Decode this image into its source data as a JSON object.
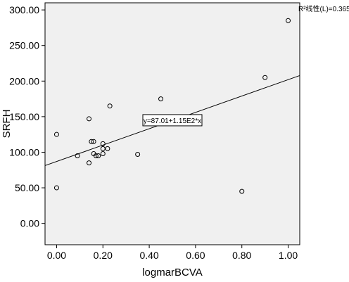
{
  "chart_data": {
    "type": "scatter",
    "xlabel": "logmarBCVA",
    "ylabel": "SRFH",
    "xlim": [
      -0.05,
      1.05
    ],
    "ylim": [
      -30,
      310
    ],
    "xticks": [
      0.0,
      0.2,
      0.4,
      0.6,
      0.8,
      1.0
    ],
    "xtick_labels": [
      "0.00",
      "0.20",
      "0.40",
      "0.60",
      "0.80",
      "1.00"
    ],
    "yticks": [
      0,
      50,
      100,
      150,
      200,
      250,
      300
    ],
    "ytick_labels": [
      "0.00",
      "50.00",
      "100.00",
      "150.00",
      "200.00",
      "250.00",
      "300.00"
    ],
    "grid": false,
    "plot_background": "#f0f0f0",
    "marker_color": "#000000",
    "points": [
      {
        "x": 0.0,
        "y": 125
      },
      {
        "x": 0.0,
        "y": 50
      },
      {
        "x": 0.09,
        "y": 95
      },
      {
        "x": 0.14,
        "y": 147
      },
      {
        "x": 0.14,
        "y": 85
      },
      {
        "x": 0.15,
        "y": 115
      },
      {
        "x": 0.16,
        "y": 115
      },
      {
        "x": 0.16,
        "y": 98
      },
      {
        "x": 0.17,
        "y": 95
      },
      {
        "x": 0.18,
        "y": 95
      },
      {
        "x": 0.2,
        "y": 112
      },
      {
        "x": 0.2,
        "y": 105
      },
      {
        "x": 0.2,
        "y": 98
      },
      {
        "x": 0.22,
        "y": 105
      },
      {
        "x": 0.23,
        "y": 165
      },
      {
        "x": 0.35,
        "y": 97
      },
      {
        "x": 0.45,
        "y": 175
      },
      {
        "x": 0.8,
        "y": 45
      },
      {
        "x": 0.9,
        "y": 205
      },
      {
        "x": 1.0,
        "y": 285
      }
    ],
    "fit_line": {
      "intercept": 87.01,
      "slope": 115,
      "x_range": [
        -0.05,
        1.05
      ]
    },
    "equation_text": "y=87.01+1.15E2*x",
    "equation_anchor": {
      "x": 0.5,
      "y": 145
    },
    "r2_text": "R²线性(L)=0.365"
  }
}
